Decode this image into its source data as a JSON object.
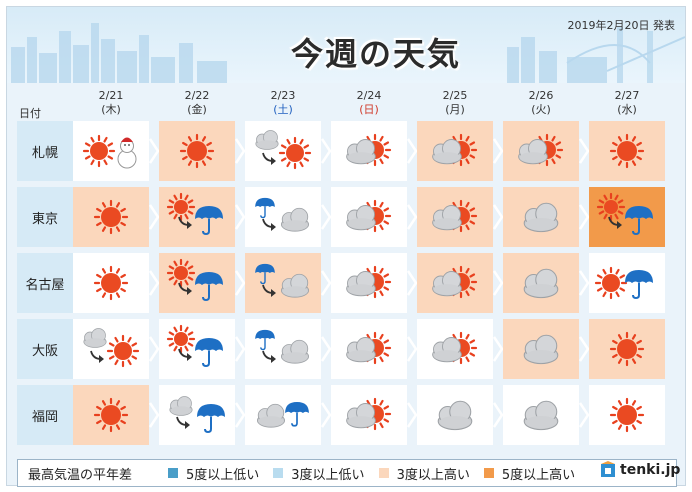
{
  "header": {
    "title": "今週の天気",
    "issued": "2019年2月20日 発表"
  },
  "date_label": "日付",
  "dates": [
    {
      "date": "2/21",
      "dow": "(木)",
      "kind": "weekday"
    },
    {
      "date": "2/22",
      "dow": "(金)",
      "kind": "weekday"
    },
    {
      "date": "2/23",
      "dow": "(土)",
      "kind": "sat"
    },
    {
      "date": "2/24",
      "dow": "(日)",
      "kind": "sun"
    },
    {
      "date": "2/25",
      "dow": "(月)",
      "kind": "weekday"
    },
    {
      "date": "2/26",
      "dow": "(火)",
      "kind": "weekday"
    },
    {
      "date": "2/27",
      "dow": "(水)",
      "kind": "weekday"
    }
  ],
  "cities": [
    {
      "name": "札幌",
      "forecast": [
        {
          "icon": "sun-snow",
          "bg": "none"
        },
        {
          "icon": "sun",
          "bg": "warm"
        },
        {
          "icon": "cloud-then-sun",
          "bg": "none"
        },
        {
          "icon": "cloud-sun",
          "bg": "none"
        },
        {
          "icon": "cloud-sun",
          "bg": "warm"
        },
        {
          "icon": "cloud-sun",
          "bg": "warm"
        },
        {
          "icon": "sun",
          "bg": "warm"
        }
      ]
    },
    {
      "name": "東京",
      "forecast": [
        {
          "icon": "sun",
          "bg": "warm"
        },
        {
          "icon": "sun-then-rain",
          "bg": "warm"
        },
        {
          "icon": "rain-then-cloud",
          "bg": "none"
        },
        {
          "icon": "cloud-sun",
          "bg": "none"
        },
        {
          "icon": "cloud-sun",
          "bg": "warm"
        },
        {
          "icon": "cloud",
          "bg": "warm"
        },
        {
          "icon": "sun-then-rain",
          "bg": "hot"
        }
      ]
    },
    {
      "name": "名古屋",
      "forecast": [
        {
          "icon": "sun",
          "bg": "none"
        },
        {
          "icon": "sun-then-rain",
          "bg": "warm"
        },
        {
          "icon": "rain-then-cloud",
          "bg": "warm"
        },
        {
          "icon": "cloud-sun",
          "bg": "none"
        },
        {
          "icon": "cloud-sun",
          "bg": "warm"
        },
        {
          "icon": "cloud",
          "bg": "warm"
        },
        {
          "icon": "sun-rain",
          "bg": "none"
        }
      ]
    },
    {
      "name": "大阪",
      "forecast": [
        {
          "icon": "cloud-then-sun",
          "bg": "none"
        },
        {
          "icon": "sun-then-rain",
          "bg": "none"
        },
        {
          "icon": "rain-then-cloud",
          "bg": "none"
        },
        {
          "icon": "cloud-sun",
          "bg": "none"
        },
        {
          "icon": "cloud-sun",
          "bg": "none"
        },
        {
          "icon": "cloud",
          "bg": "warm"
        },
        {
          "icon": "sun",
          "bg": "warm"
        }
      ]
    },
    {
      "name": "福岡",
      "forecast": [
        {
          "icon": "sun",
          "bg": "warm"
        },
        {
          "icon": "cloud-then-rain",
          "bg": "none"
        },
        {
          "icon": "cloud-rain",
          "bg": "none"
        },
        {
          "icon": "cloud-sun",
          "bg": "none"
        },
        {
          "icon": "cloud",
          "bg": "none"
        },
        {
          "icon": "cloud",
          "bg": "none"
        },
        {
          "icon": "sun",
          "bg": "none"
        }
      ]
    }
  ],
  "legend": {
    "label": "最高気温の平年差",
    "items": [
      {
        "text": "5度以上低い",
        "color": "#4a9ec8"
      },
      {
        "text": "3度以上低い",
        "color": "#b9dcef"
      },
      {
        "text": "3度以上高い",
        "color": "#fbd7bc"
      },
      {
        "text": "5度以上高い",
        "color": "#f29a4a"
      }
    ]
  },
  "logo": "tenki.jp",
  "colors": {
    "warm": "#fbd7bc",
    "hot": "#f29a4a",
    "city_bg": "#d6eaf6"
  }
}
